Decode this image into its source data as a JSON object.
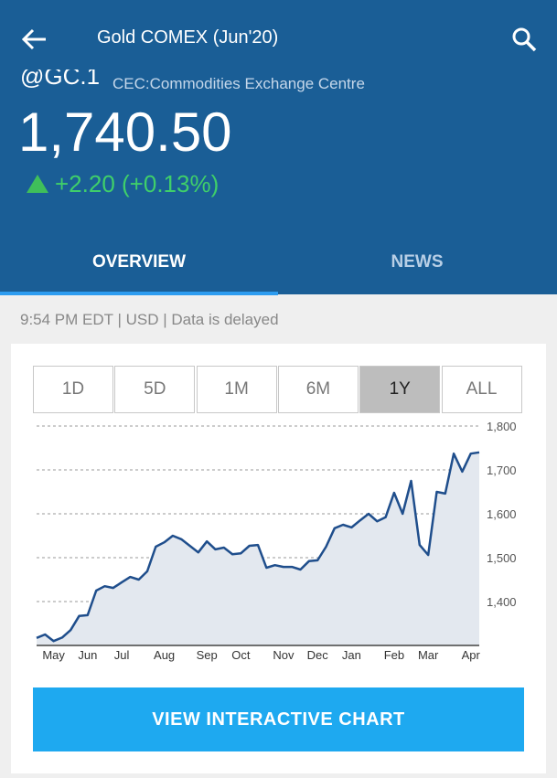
{
  "header": {
    "title": "Gold COMEX (Jun'20)",
    "symbol": "@GC.1",
    "exchange": "CEC:Commodities Exchange Centre",
    "price": "1,740.50",
    "change": "+2.20 (+0.13%)"
  },
  "tabs": [
    "OVERVIEW",
    "NEWS"
  ],
  "active_tab": 0,
  "status": "9:54 PM EDT | USD | Data is delayed",
  "ranges": [
    "1D",
    "5D",
    "1M",
    "6M",
    "1Y",
    "ALL"
  ],
  "selected_range": 4,
  "chart_data": {
    "type": "area",
    "color": "#1f4e8c",
    "fill": "#e3e8ef",
    "grid": true,
    "categories": [
      null,
      null,
      "May",
      null,
      null,
      null,
      "Jun",
      null,
      null,
      null,
      "Jul",
      null,
      null,
      null,
      null,
      "Aug",
      null,
      null,
      null,
      null,
      "Sep",
      null,
      null,
      null,
      "Oct",
      null,
      null,
      null,
      null,
      "Nov",
      null,
      null,
      null,
      "Dec",
      null,
      null,
      null,
      "Jan",
      null,
      null,
      null,
      null,
      "Feb",
      null,
      null,
      null,
      "Mar",
      null,
      null,
      null,
      null,
      "Apr",
      null
    ],
    "values": [
      1317,
      1325,
      1310,
      1318,
      1335,
      1367,
      1369,
      1425,
      1435,
      1431,
      1444,
      1456,
      1450,
      1469,
      1525,
      1535,
      1550,
      1542,
      1527,
      1512,
      1537,
      1519,
      1523,
      1508,
      1510,
      1527,
      1529,
      1477,
      1483,
      1479,
      1479,
      1473,
      1492,
      1494,
      1525,
      1567,
      1575,
      1569,
      1585,
      1600,
      1583,
      1592,
      1648,
      1600,
      1675,
      1529,
      1506,
      1650,
      1646,
      1737,
      1696,
      1737,
      1740
    ],
    "ylim": [
      1300,
      1800
    ],
    "yticks": [
      {
        "value": 1400,
        "label": "1,400"
      },
      {
        "value": 1500,
        "label": "1,500"
      },
      {
        "value": 1600,
        "label": "1,600"
      },
      {
        "value": 1700,
        "label": "1,700"
      },
      {
        "value": 1800,
        "label": "1,800"
      }
    ]
  },
  "button": "VIEW INTERACTIVE CHART"
}
